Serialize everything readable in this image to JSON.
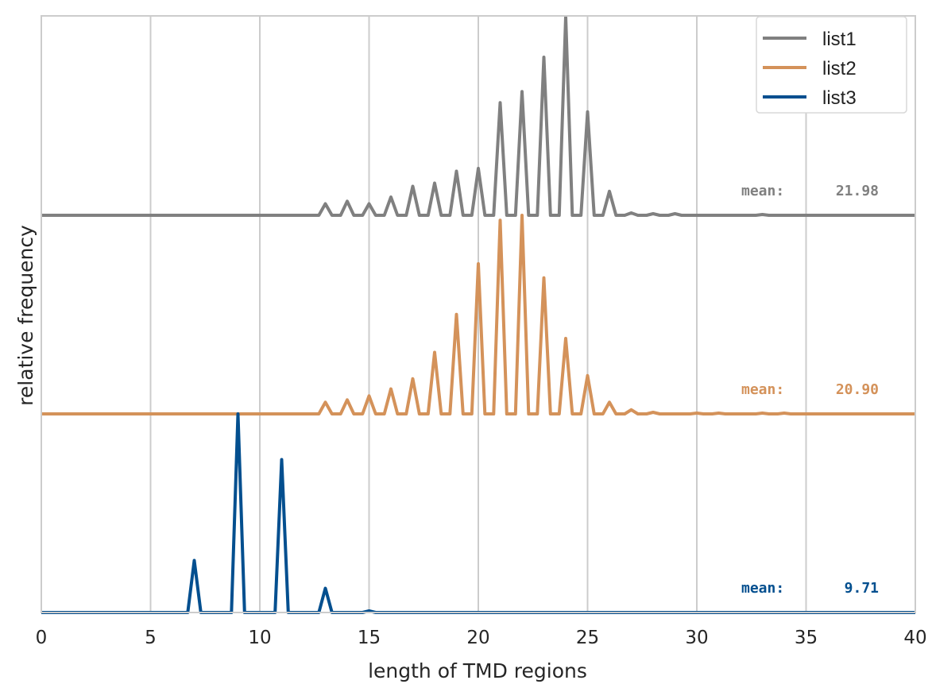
{
  "chart_data": {
    "type": "line",
    "title": "",
    "xlabel": "length of TMD regions",
    "ylabel": "relative frequency",
    "xlim": [
      0,
      40
    ],
    "x_ticks": [
      0,
      5,
      10,
      15,
      20,
      25,
      30,
      35,
      40
    ],
    "grid": "vertical",
    "legend_position": "top-right",
    "series": [
      {
        "name": "list1",
        "color": "#808080",
        "baseline_level": 2,
        "mean_label": "mean:",
        "mean_value": "21.98",
        "x": [
          13,
          14,
          15,
          16,
          17,
          18,
          19,
          20,
          21,
          22,
          23,
          24,
          25,
          26,
          27,
          28,
          29,
          33
        ],
        "values": [
          0.058,
          0.071,
          0.058,
          0.092,
          0.146,
          0.162,
          0.222,
          0.236,
          0.567,
          0.623,
          0.796,
          1.0,
          0.521,
          0.121,
          0.012,
          0.008,
          0.008,
          0.004
        ]
      },
      {
        "name": "list2",
        "color": "#d4925a",
        "baseline_level": 1,
        "mean_label": "mean:",
        "mean_value": "20.90",
        "x": [
          13,
          14,
          15,
          16,
          17,
          18,
          19,
          20,
          21,
          22,
          23,
          24,
          25,
          26,
          27,
          28,
          30,
          31,
          33,
          34
        ],
        "values": [
          0.059,
          0.071,
          0.091,
          0.126,
          0.177,
          0.31,
          0.501,
          0.756,
          0.975,
          1.0,
          0.685,
          0.38,
          0.193,
          0.059,
          0.021,
          0.008,
          0.004,
          0.004,
          0.004,
          0.004
        ]
      },
      {
        "name": "list3",
        "color": "#034f8f",
        "baseline_level": 0,
        "mean_label": "mean:",
        "mean_value": "9.71",
        "x": [
          7,
          9,
          11,
          13,
          15
        ],
        "values": [
          0.262,
          1.0,
          0.77,
          0.122,
          0.008
        ]
      }
    ]
  }
}
